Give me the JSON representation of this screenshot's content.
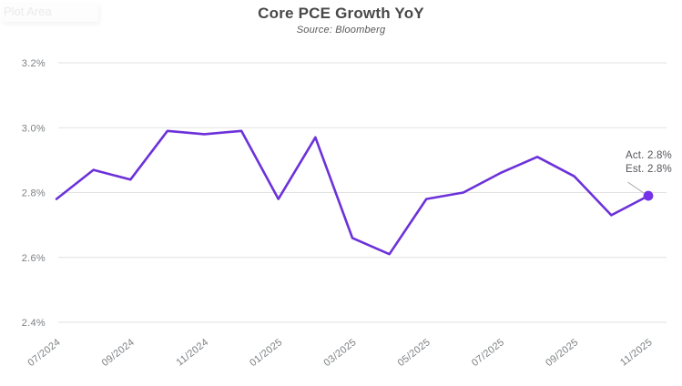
{
  "window": {
    "plot_area_tooltip": "Plot Area"
  },
  "header": {
    "title": "Core PCE Growth YoY",
    "subtitle": "Source: Bloomberg"
  },
  "annotation": {
    "act": "Act. 2.8%",
    "est": "Est. 2.8%"
  },
  "colors": {
    "line": "#6C31D9",
    "marker": "#7532E8",
    "grid": "#e2e2e2",
    "axis_text": "#7d8084",
    "title_text": "#484848",
    "subtitle_text": "#585858",
    "annotation_text": "#55565a",
    "leader_line": "#aeaeae",
    "tooltip_text": "#eaeaea"
  },
  "chart_data": {
    "type": "line",
    "title": "Core PCE Growth YoY",
    "subtitle": "Source: Bloomberg",
    "x": [
      "07/2024",
      "08/2024",
      "09/2024",
      "10/2024",
      "11/2024",
      "12/2024",
      "01/2025",
      "02/2025",
      "03/2025",
      "04/2025",
      "05/2025",
      "06/2025",
      "07/2025",
      "08/2025",
      "09/2025",
      "10/2025",
      "11/2025"
    ],
    "series": [
      {
        "name": "Core PCE Growth YoY",
        "values": [
          2.78,
          2.87,
          2.84,
          2.99,
          2.98,
          2.99,
          2.78,
          2.97,
          2.66,
          2.61,
          2.78,
          2.8,
          2.86,
          2.91,
          2.85,
          2.73,
          2.79
        ]
      }
    ],
    "xlabel": "",
    "ylabel": "",
    "ylim": [
      2.4,
      3.2
    ],
    "yticks": [
      {
        "value": 3.2,
        "label": "3.2%"
      },
      {
        "value": 3.0,
        "label": "3.0%"
      },
      {
        "value": 2.8,
        "label": "2.8%"
      },
      {
        "value": 2.6,
        "label": "2.6%"
      },
      {
        "value": 2.4,
        "label": "2.4%"
      }
    ],
    "xtick_labels_shown": [
      "07/2024",
      "09/2024",
      "11/2024",
      "01/2025",
      "03/2025",
      "05/2025",
      "07/2025",
      "09/2025",
      "11/2025"
    ],
    "xtick_every": 2,
    "grid": "horizontal-only",
    "legend": "none",
    "last_point_marker": {
      "x": "11/2025",
      "value": 2.79
    },
    "annotations": [
      {
        "lines": [
          "Act. 2.8%",
          "Est. 2.8%"
        ],
        "anchor_x": "11/2025",
        "anchor_value": 2.79
      }
    ]
  }
}
